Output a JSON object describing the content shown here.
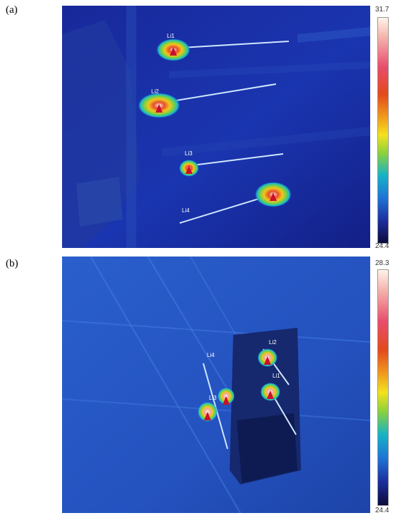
{
  "panel_a": {
    "label": "(a)",
    "scale_max": "31.7",
    "scale_min": "24.4",
    "points": [
      "Li1",
      "Li2",
      "Li3",
      "Li4"
    ],
    "colors": {
      "background": "#1a2a9a",
      "hot": "#e64a2a",
      "warm": "#f3d21d"
    }
  },
  "panel_b": {
    "label": "(b)",
    "scale_max": "28.3",
    "scale_min": "24.4",
    "points": [
      "Li2",
      "Li1",
      "Li4",
      "Li3"
    ],
    "colors": {
      "background": "#2456c4",
      "hot": "#e64a2a",
      "warm": "#f3d21d"
    }
  }
}
